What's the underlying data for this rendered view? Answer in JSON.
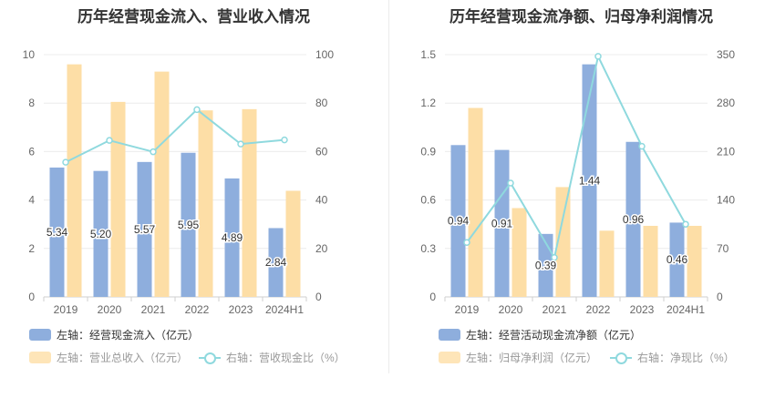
{
  "chart_data": [
    {
      "type": "bar",
      "title": "历年经营现金流入、营业收入情况",
      "categories": [
        "2019",
        "2020",
        "2021",
        "2022",
        "2023",
        "2024H1"
      ],
      "y_left": {
        "ticks": [
          "0",
          "2",
          "4",
          "6",
          "8",
          "10"
        ],
        "min": 0,
        "max": 10
      },
      "y_right": {
        "ticks": [
          "0",
          "20",
          "40",
          "60",
          "80",
          "100"
        ],
        "min": 0,
        "max": 100
      },
      "series": [
        {
          "name": "左轴：经营现金流入（亿元）",
          "axis": "left",
          "kind": "bar",
          "color": "#8eaedd",
          "values": [
            5.34,
            5.2,
            5.57,
            5.95,
            4.89,
            2.84
          ],
          "labels": [
            "5.34",
            "5.20",
            "5.57",
            "5.95",
            "4.89",
            "2.84"
          ]
        },
        {
          "name": "左轴：营业总收入（亿元）",
          "axis": "left",
          "kind": "bar",
          "color": "#fddea6",
          "values": [
            9.6,
            8.05,
            9.3,
            7.7,
            7.75,
            4.38
          ]
        },
        {
          "name": "右轴：营收现金比（%）",
          "axis": "right",
          "kind": "line",
          "color": "#8fd9de",
          "values": [
            55.6,
            64.6,
            59.9,
            77.3,
            63.1,
            64.8
          ]
        }
      ],
      "grid": true,
      "legend_position": "bottom-left"
    },
    {
      "type": "bar",
      "title": "历年经营现金流净额、归母净利润情况",
      "categories": [
        "2019",
        "2020",
        "2021",
        "2022",
        "2023",
        "2024H1"
      ],
      "y_left": {
        "ticks": [
          "0",
          "0.3",
          "0.6",
          "0.9",
          "1.2",
          "1.5"
        ],
        "min": 0,
        "max": 1.5
      },
      "y_right": {
        "ticks": [
          "0",
          "70",
          "140",
          "210",
          "280",
          "350"
        ],
        "min": 0,
        "max": 350
      },
      "series": [
        {
          "name": "左轴：经营活动现金流净额（亿元）",
          "axis": "left",
          "kind": "bar",
          "color": "#8eaedd",
          "values": [
            0.94,
            0.91,
            0.39,
            1.44,
            0.96,
            0.46
          ],
          "labels": [
            "0.94",
            "0.91",
            "0.39",
            "1.44",
            "0.96",
            "0.46"
          ]
        },
        {
          "name": "左轴：归母净利润（亿元）",
          "axis": "left",
          "kind": "bar",
          "color": "#fddea6",
          "values": [
            1.17,
            0.55,
            0.68,
            0.41,
            0.44,
            0.44
          ]
        },
        {
          "name": "右轴：净现比（%）",
          "axis": "right",
          "kind": "line",
          "color": "#8fd9de",
          "values": [
            78.6,
            164.5,
            56.9,
            347.5,
            217.6,
            105.0
          ]
        }
      ],
      "grid": true,
      "legend_position": "bottom-left"
    }
  ]
}
